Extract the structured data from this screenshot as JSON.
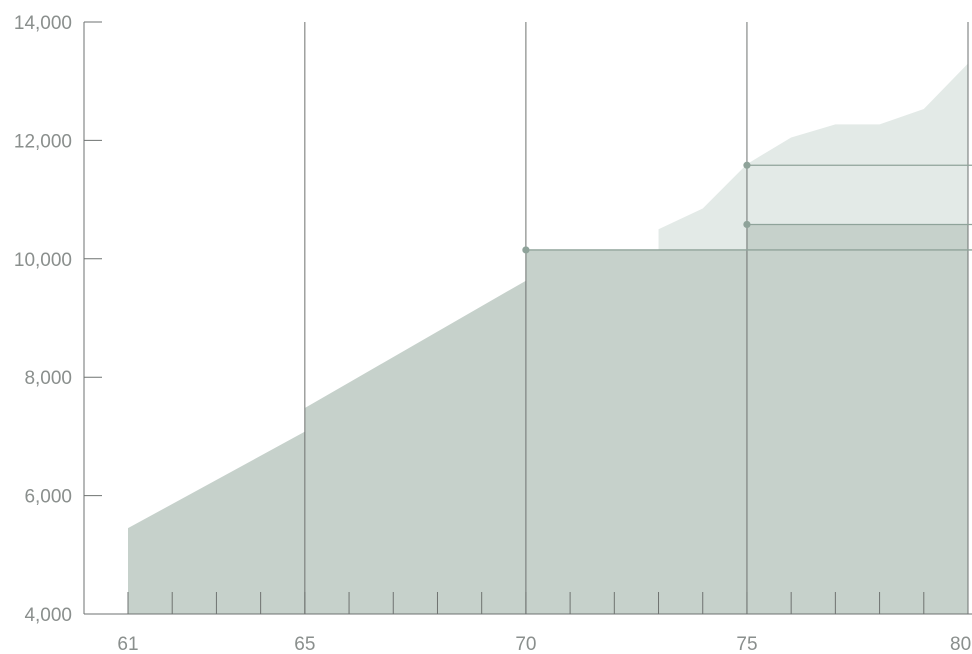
{
  "colors": {
    "area_light": "#e3eae7",
    "area_dark": "#c6d1cb",
    "line": "#8fa39a",
    "axis": "#6e7270",
    "text": "#8a8f8d"
  },
  "chart_data": {
    "type": "area",
    "title": "",
    "xlabel": "",
    "ylabel": "",
    "xlim": [
      61,
      80
    ],
    "ylim": [
      4000,
      14000
    ],
    "x_ticks": [
      61,
      65,
      70,
      75,
      80
    ],
    "x_tick_labels": [
      "61",
      "65",
      "70",
      "75",
      "80"
    ],
    "y_ticks": [
      4000,
      6000,
      8000,
      10000,
      12000,
      14000
    ],
    "y_tick_labels": [
      "4,000",
      "6,000",
      "8,000",
      "10,000",
      "12,000",
      "14,000"
    ],
    "minor_x_ticks": [
      62,
      63,
      64,
      66,
      67,
      68,
      69,
      71,
      72,
      73,
      74,
      76,
      77,
      78,
      79
    ],
    "grid_x": [
      65,
      70,
      75,
      80
    ],
    "series": [
      {
        "role": "light-area",
        "x": [
          73,
          73,
          74,
          75,
          76,
          77,
          78,
          79,
          80
        ],
        "y": [
          4000,
          10500,
          10850,
          11600,
          12050,
          12270,
          12270,
          12530,
          13300
        ]
      },
      {
        "role": "dark-area",
        "x": [
          61,
          65,
          65,
          70,
          70,
          75,
          75,
          80,
          80
        ],
        "y": [
          5450,
          7080,
          7480,
          9630,
          10150,
          10150,
          10580,
          10580,
          11120
        ]
      }
    ],
    "markers": [
      {
        "x": 70,
        "y": 10150
      },
      {
        "x": 75,
        "y": 11580
      },
      {
        "x": 75,
        "y": 10580
      }
    ],
    "reference_lines": [
      {
        "x_start": 70,
        "y": 10150
      },
      {
        "x_start": 75,
        "y": 11580
      },
      {
        "x_start": 75,
        "y": 10580
      }
    ]
  }
}
